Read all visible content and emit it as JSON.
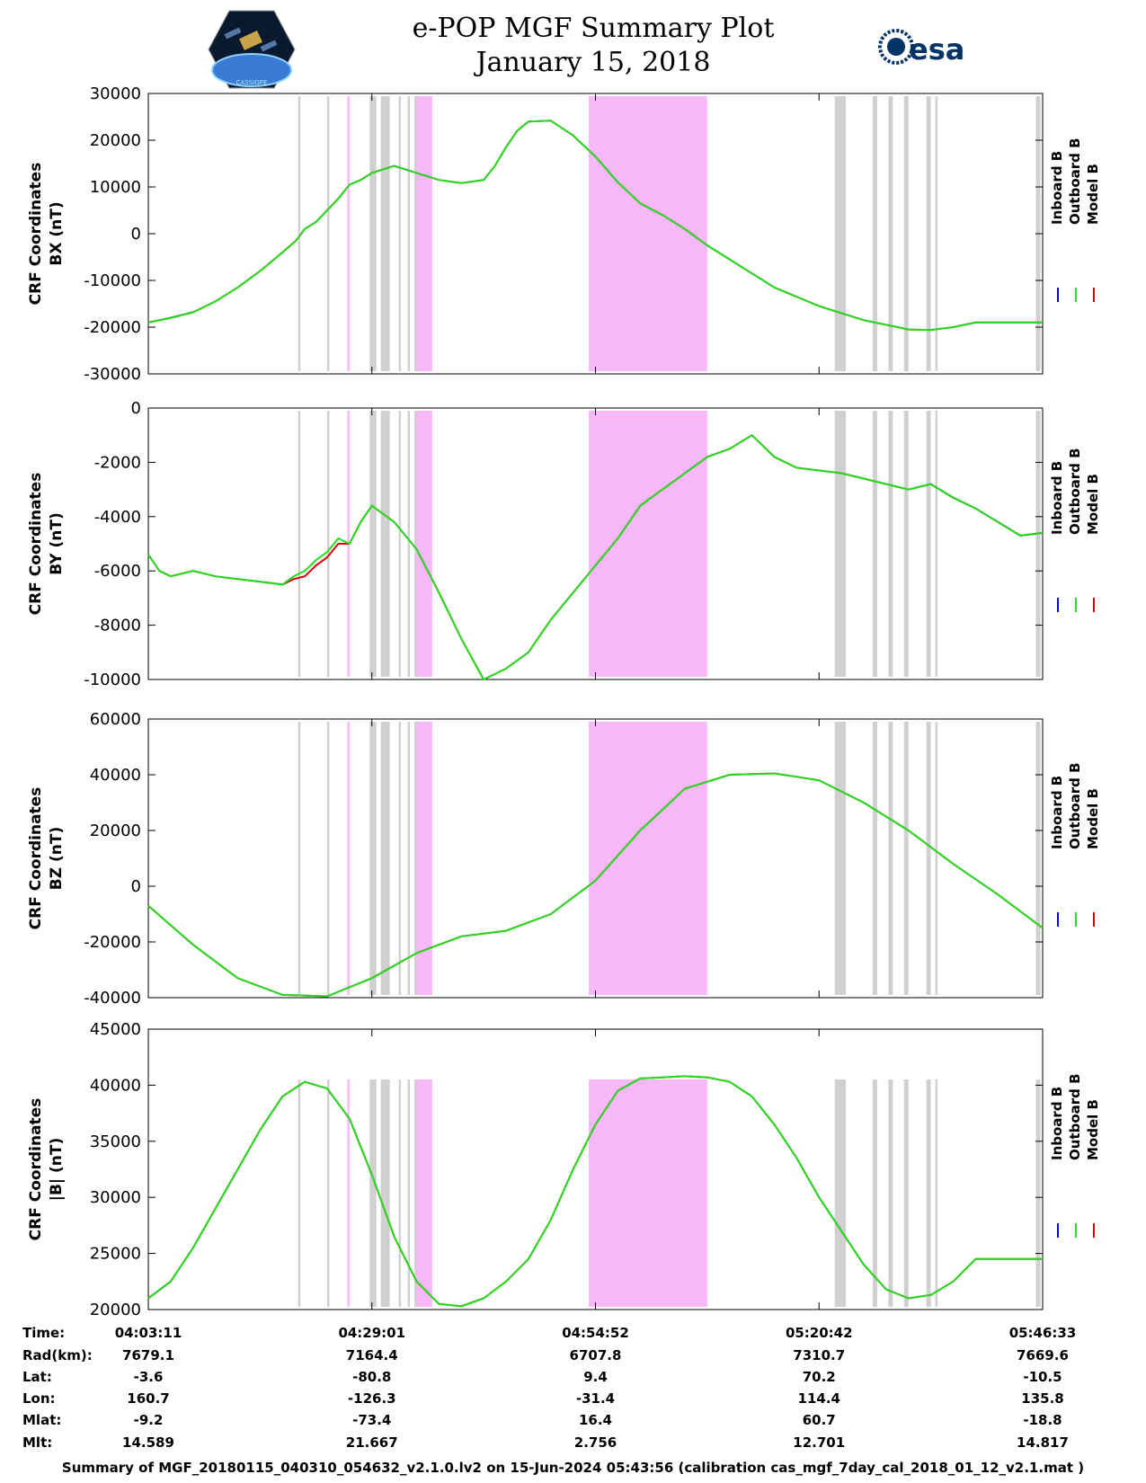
{
  "header": {
    "title_line1": "e-POP MGF Summary Plot",
    "title_line2": "January 15, 2018",
    "left_logo": "cassiope-logo",
    "right_logo_text": "esa",
    "cassiope_caption": "CASSIOPE"
  },
  "legend": [
    "Inboard B",
    "Outboard B",
    "Model B"
  ],
  "colors": {
    "inboard": "#0000ee",
    "outboard": "#22dd22",
    "model": "#dd0000",
    "gray_band": "#d0d0d0",
    "pink_band": "#f9b8f9"
  },
  "chart_data": [
    {
      "type": "line",
      "ylabel_line1": "CRF Coordinates",
      "ylabel_line2": "BX (nT)",
      "ylim": [
        -30000,
        30000
      ],
      "yticks": [
        "30000",
        "20000",
        "10000",
        "0",
        "-10000",
        "-20000",
        "-30000"
      ],
      "x": [
        0,
        10,
        20,
        30,
        40,
        50,
        60,
        66,
        70,
        75,
        80,
        85,
        90,
        95,
        100,
        110,
        120,
        130,
        140,
        150,
        155,
        160,
        165,
        170,
        180,
        190,
        200,
        210,
        220,
        230,
        240,
        250,
        260,
        270,
        280,
        290,
        300,
        310,
        320,
        330,
        340,
        350,
        360,
        370,
        380,
        390,
        400
      ],
      "series": [
        {
          "name": "Inboard B",
          "values": [
            -19000,
            -18000,
            -16800,
            null,
            null,
            null,
            null,
            null,
            null,
            null,
            null,
            null,
            null,
            null,
            null,
            null,
            null,
            null,
            null,
            null,
            null,
            null,
            null,
            null,
            null,
            null,
            null,
            null,
            null,
            null,
            null,
            null,
            null,
            null,
            null,
            null,
            null,
            null,
            null,
            null,
            null,
            null,
            null,
            null,
            null,
            null,
            null
          ]
        },
        {
          "name": "Outboard B",
          "values": [
            -19000,
            -18000,
            -16800,
            -14500,
            -11500,
            -8000,
            -4000,
            -1500,
            1000,
            2500,
            5000,
            7500,
            10500,
            11500,
            13000,
            14500,
            13000,
            11500,
            10800,
            11500,
            14500,
            18500,
            22000,
            24000,
            24200,
            21000,
            16500,
            11000,
            6500,
            4000,
            1000,
            -2500,
            -5500,
            -8500,
            -11500,
            -13500,
            -15500,
            -17000,
            -18500,
            -19500,
            -20500,
            -20600,
            -20000,
            -19000,
            -19000,
            -19000,
            -19000
          ]
        },
        {
          "name": "Model B",
          "values": [
            -19000,
            -18000,
            -16800,
            -14500,
            -11500,
            -8000,
            -4000,
            -1500,
            1000,
            2500,
            5000,
            7500,
            10500,
            11500,
            13000,
            14500,
            13000,
            11500,
            10800,
            11500,
            14500,
            18500,
            22000,
            24000,
            24200,
            21000,
            16500,
            11000,
            6500,
            4000,
            1000,
            -2500,
            -5500,
            -8500,
            -11500,
            -13500,
            -15500,
            -17000,
            -18500,
            -19500,
            -20500,
            -20600,
            -20000,
            -19000,
            -19000,
            -19000,
            -19000
          ]
        }
      ]
    },
    {
      "type": "line",
      "ylabel_line1": "CRF Coordinates",
      "ylabel_line2": "BY (nT)",
      "ylim": [
        -10000,
        0
      ],
      "yticks": [
        "0",
        "-2000",
        "-4000",
        "-6000",
        "-8000",
        "-10000"
      ],
      "x": [
        0,
        5,
        10,
        20,
        30,
        40,
        50,
        60,
        65,
        70,
        75,
        80,
        85,
        90,
        95,
        100,
        110,
        120,
        130,
        140,
        150,
        160,
        170,
        180,
        190,
        200,
        210,
        220,
        230,
        240,
        250,
        260,
        270,
        280,
        290,
        300,
        310,
        320,
        330,
        340,
        350,
        360,
        370,
        380,
        390,
        400
      ],
      "series": [
        {
          "name": "Inboard B",
          "values": [
            null,
            null,
            null,
            null,
            null,
            null,
            null,
            null,
            null,
            null,
            null,
            null,
            null,
            null,
            null,
            null,
            null,
            null,
            null,
            null,
            null,
            null,
            null,
            null,
            null,
            null,
            null,
            null,
            null,
            null,
            null,
            null,
            null,
            null,
            null,
            null,
            null,
            null,
            null,
            null,
            -2800,
            -3300,
            -3700,
            -4200,
            -4700,
            -4600
          ]
        },
        {
          "name": "Outboard B",
          "values": [
            -5400,
            -6000,
            -6200,
            -6000,
            -6200,
            -6300,
            -6400,
            -6500,
            -6200,
            -6000,
            -5600,
            -5300,
            -4800,
            -5000,
            -4200,
            -3600,
            -4200,
            -5200,
            -6800,
            -8500,
            -10000,
            -9600,
            -9000,
            -7800,
            -6800,
            -5800,
            -4800,
            -3600,
            -3000,
            -2400,
            -1800,
            -1500,
            -1000,
            -1800,
            -2200,
            -2300,
            -2400,
            -2600,
            -2800,
            -3000,
            -2800,
            -3300,
            -3700,
            -4200,
            -4700,
            -4600
          ]
        },
        {
          "name": "Model B",
          "values": [
            -5400,
            -6000,
            -6200,
            -6000,
            -6200,
            -6300,
            -6400,
            -6500,
            -6300,
            -6200,
            -5800,
            -5500,
            -5000,
            -5000,
            -4200,
            -3600,
            -4200,
            -5200,
            -6800,
            -8500,
            -10000,
            -9600,
            -9000,
            -7800,
            -6800,
            -5800,
            -4800,
            -3600,
            -3000,
            -2400,
            -1800,
            -1500,
            -1000,
            -1800,
            -2200,
            -2300,
            -2400,
            -2600,
            -2800,
            -3000,
            -2800,
            -3300,
            -3700,
            -4200,
            -4700,
            -4600
          ]
        }
      ]
    },
    {
      "type": "line",
      "ylabel_line1": "CRF Coordinates",
      "ylabel_line2": "BZ (nT)",
      "ylim": [
        -40000,
        60000
      ],
      "yticks": [
        "60000",
        "40000",
        "20000",
        "0",
        "-20000",
        "-40000"
      ],
      "x": [
        0,
        20,
        40,
        60,
        80,
        100,
        120,
        140,
        160,
        180,
        200,
        220,
        240,
        260,
        280,
        300,
        320,
        340,
        360,
        380,
        400
      ],
      "series": [
        {
          "name": "Inboard B",
          "values": [
            null,
            null,
            null,
            null,
            null,
            null,
            null,
            null,
            null,
            null,
            null,
            null,
            null,
            null,
            null,
            null,
            null,
            null,
            null,
            null,
            null
          ]
        },
        {
          "name": "Outboard B",
          "values": [
            -7000,
            -21000,
            -33000,
            -39000,
            -39500,
            -33000,
            -24000,
            -18000,
            -16000,
            -10000,
            2000,
            20000,
            35000,
            40000,
            40500,
            38000,
            30000,
            20000,
            8000,
            -3000,
            -15000
          ]
        },
        {
          "name": "Model B",
          "values": [
            -7000,
            -21000,
            -33000,
            -39000,
            -39500,
            -33000,
            -24000,
            -18000,
            -16000,
            -10000,
            2000,
            20000,
            35000,
            40000,
            40500,
            38000,
            30000,
            20000,
            8000,
            -3000,
            -15000
          ]
        }
      ]
    },
    {
      "type": "line",
      "ylabel_line1": "CRF Coordinates",
      "ylabel_line2": "|B| (nT)",
      "ylim": [
        20000,
        45000
      ],
      "yticks": [
        "45000",
        "40000",
        "35000",
        "30000",
        "25000",
        "20000"
      ],
      "x": [
        0,
        10,
        20,
        30,
        40,
        50,
        60,
        70,
        80,
        90,
        100,
        110,
        120,
        130,
        140,
        150,
        160,
        170,
        180,
        190,
        200,
        210,
        220,
        230,
        240,
        250,
        260,
        270,
        280,
        290,
        300,
        310,
        320,
        330,
        340,
        350,
        360,
        370,
        380,
        390,
        400
      ],
      "series": [
        {
          "name": "Inboard B",
          "values": [
            21000,
            22500,
            null,
            null,
            null,
            null,
            null,
            null,
            null,
            null,
            null,
            null,
            null,
            null,
            null,
            null,
            null,
            null,
            null,
            null,
            null,
            null,
            null,
            null,
            null,
            null,
            null,
            null,
            null,
            null,
            null,
            null,
            null,
            null,
            null,
            null,
            null,
            null,
            null,
            null,
            null
          ]
        },
        {
          "name": "Outboard B",
          "values": [
            21000,
            22500,
            25500,
            29000,
            32500,
            36000,
            39000,
            40300,
            39700,
            37000,
            32000,
            26500,
            22500,
            20500,
            20300,
            21000,
            22500,
            24500,
            28000,
            32500,
            36500,
            39500,
            40600,
            40700,
            40800,
            40700,
            40300,
            39000,
            36500,
            33500,
            30000,
            27000,
            24000,
            21800,
            21000,
            21300,
            22500,
            24500,
            24500,
            24500,
            24500
          ]
        },
        {
          "name": "Model B",
          "values": [
            21000,
            22500,
            25500,
            29000,
            32500,
            36000,
            39000,
            40300,
            39700,
            37000,
            32000,
            26500,
            22500,
            20500,
            20300,
            21000,
            22500,
            24500,
            28000,
            32500,
            36500,
            39500,
            40600,
            40700,
            40800,
            40700,
            40300,
            39000,
            36500,
            33500,
            30000,
            27000,
            24000,
            21800,
            21000,
            21300,
            22500,
            24500,
            24500,
            24500,
            24500
          ]
        }
      ]
    }
  ],
  "bands": {
    "pink": [
      [
        89,
        90
      ],
      [
        120,
        127
      ],
      [
        197,
        250
      ]
    ],
    "gray": [
      [
        67,
        68
      ],
      [
        80,
        81
      ],
      [
        99,
        102
      ],
      [
        104,
        106
      ],
      [
        106,
        108
      ],
      [
        112,
        113
      ],
      [
        116,
        117
      ],
      [
        119,
        120
      ],
      [
        307,
        312
      ],
      [
        324,
        326
      ],
      [
        331,
        333
      ],
      [
        338,
        340
      ],
      [
        348,
        350
      ],
      [
        352,
        353
      ],
      [
        397,
        399
      ]
    ]
  },
  "ephemeris": {
    "labels": [
      "Time:",
      "Rad(km):",
      "Lat:",
      "Lon:",
      "Mlat:",
      "Mlt:"
    ],
    "columns": [
      [
        "04:03:11",
        "7679.1",
        "-3.6",
        "160.7",
        "-9.2",
        "14.589"
      ],
      [
        "04:29:01",
        "7164.4",
        "-80.8",
        "-126.3",
        "-73.4",
        "21.667"
      ],
      [
        "04:54:52",
        "6707.8",
        "9.4",
        "-31.4",
        "16.4",
        "2.756"
      ],
      [
        "05:20:42",
        "7310.7",
        "70.2",
        "114.4",
        "60.7",
        "12.701"
      ],
      [
        "05:46:33",
        "7669.6",
        "-10.5",
        "135.8",
        "-18.8",
        "14.817"
      ]
    ]
  },
  "footer": "Summary of MGF_20180115_040310_054632_v2.1.0.lv2 on 15-Jun-2024 05:43:56 (calibration cas_mgf_7day_cal_2018_01_12_v2.1.mat )"
}
